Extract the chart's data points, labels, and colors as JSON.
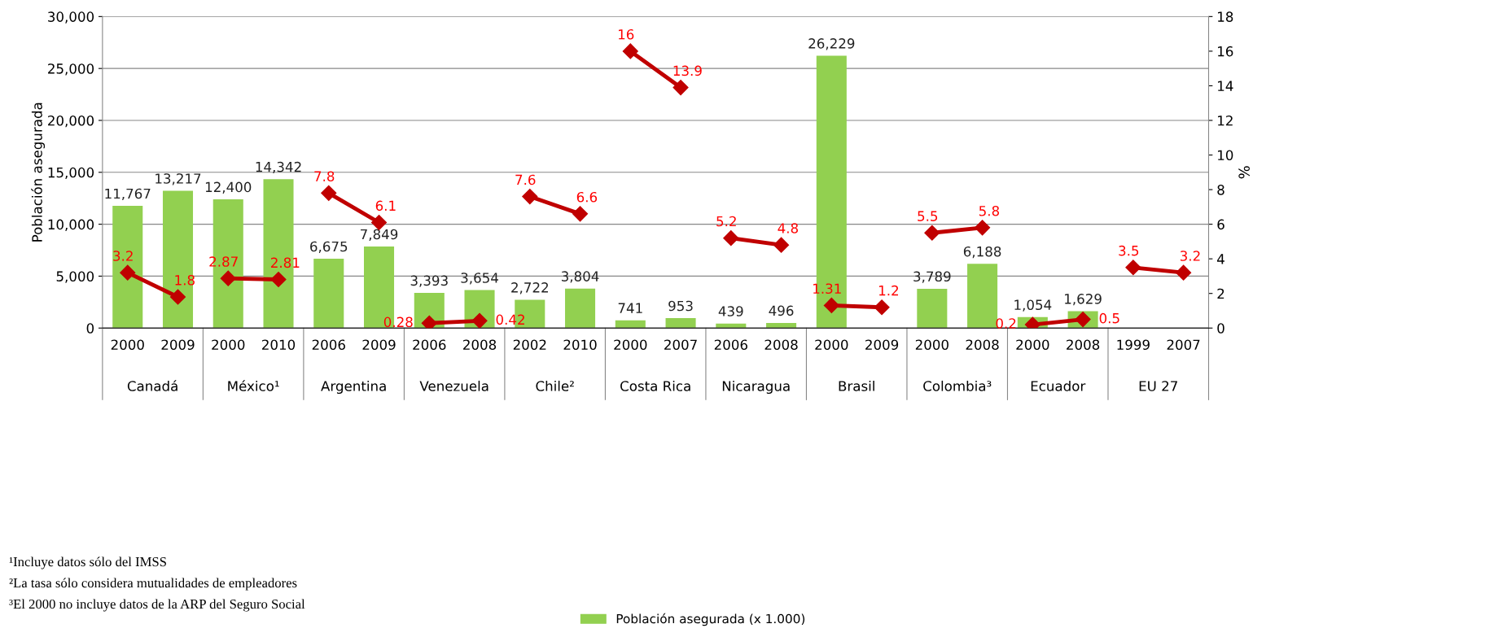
{
  "chart_data": {
    "type": "bar",
    "ylabel": "Población asegurada",
    "y2label": "%",
    "categories": [
      "2000",
      "2009",
      "2000",
      "2010",
      "2006",
      "2009",
      "2006",
      "2008",
      "2002",
      "2010",
      "2000",
      "2007",
      "2006",
      "2008",
      "2000",
      "2009",
      "2000",
      "2008",
      "2000",
      "2008",
      "1999",
      "2007"
    ],
    "series": [
      {
        "name": "Población asegurada (x 1.000)",
        "color": "#92d050",
        "values": [
          11767,
          13217,
          12400,
          14342,
          6675,
          7849,
          3393,
          3654,
          2722,
          3804,
          741,
          953,
          439,
          496,
          26229,
          null,
          3789,
          6188,
          1054,
          1629,
          null,
          null
        ],
        "value_labels": [
          "11,767",
          "13,217",
          "12,400",
          "14,342",
          "6,675",
          "7,849",
          "3,393",
          "3,654",
          "2,722",
          "3,804",
          "741",
          "953",
          "439",
          "496",
          "26,229",
          null,
          "3,789",
          "6,188",
          "1,054",
          "1,629",
          null,
          null
        ]
      },
      {
        "type": "line",
        "axis": "y2",
        "color": "#c00000",
        "marker": "diamond",
        "values": [
          3.2,
          1.8,
          2.87,
          2.81,
          7.8,
          6.1,
          0.28,
          0.42,
          7.6,
          6.6,
          16,
          13.9,
          5.2,
          4.8,
          1.31,
          1.2,
          5.5,
          5.8,
          0.2,
          0.5,
          3.5,
          3.2
        ]
      }
    ],
    "data_labels": true,
    "ylim": [
      0,
      30000
    ],
    "yticks": [
      {
        "value": 0,
        "label": "0"
      },
      {
        "value": 5000,
        "label": "5,000"
      },
      {
        "value": 10000,
        "label": "10,000"
      },
      {
        "value": 15000,
        "label": "15,000"
      },
      {
        "value": 20000,
        "label": "20,000"
      },
      {
        "value": 25000,
        "label": "25,000"
      },
      {
        "value": 30000,
        "label": "30,000"
      }
    ],
    "y2lim": [
      0,
      18
    ],
    "y2ticks": [
      0,
      2,
      4,
      6,
      8,
      10,
      12,
      14,
      16,
      18
    ],
    "grid": "y",
    "legend": "bottom",
    "annotations": [
      "Canadá",
      "México¹",
      "Argentina",
      "Venezuela",
      "Chile²",
      "Costa Rica",
      "Nicaragua",
      "Brasil",
      "Colombia³",
      "Ecuador",
      "EU 27",
      "¹Incluye datos sólo del IMSS",
      "²La tasa sólo considera mutualidades de empleadores",
      "³El 2000 no incluye datos de la ARP del Seguro Social"
    ]
  }
}
